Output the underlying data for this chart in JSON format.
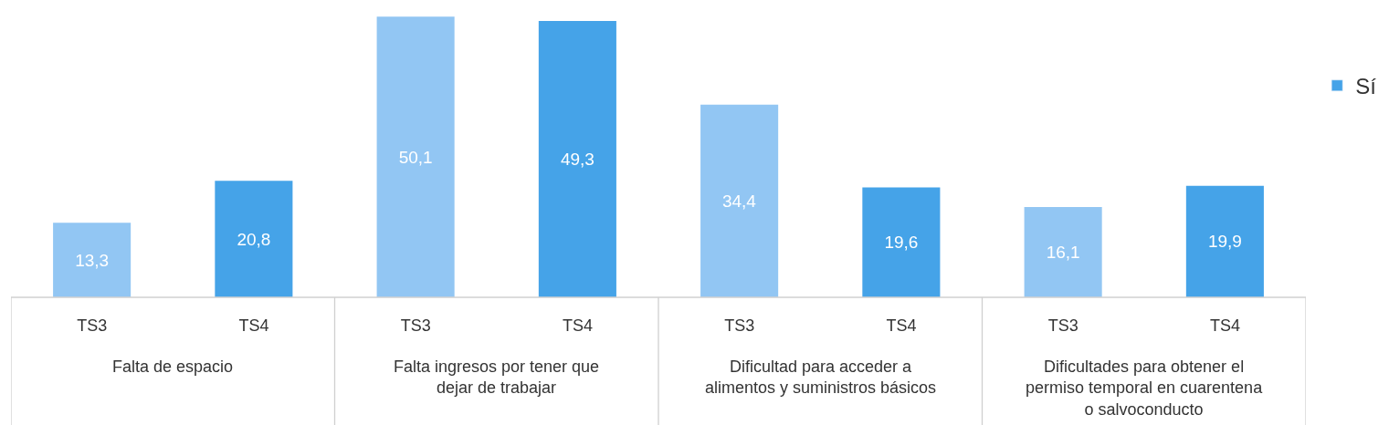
{
  "chart_data": {
    "type": "bar",
    "categories": [
      "TS3",
      "TS4",
      "TS3",
      "TS4",
      "TS3",
      "TS4",
      "TS3",
      "TS4"
    ],
    "series": [
      {
        "name": "Sí",
        "color": "#45a3e8",
        "colors": [
          "#92c6f3",
          "#45a3e8",
          "#92c6f3",
          "#45a3e8",
          "#92c6f3",
          "#45a3e8",
          "#92c6f3",
          "#45a3e8"
        ],
        "values": [
          13.3,
          20.8,
          50.1,
          49.3,
          34.4,
          19.6,
          16.1,
          19.9
        ],
        "value_labels": [
          "13,3",
          "20,8",
          "50,1",
          "49,3",
          "34,4",
          "19,6",
          "16,1",
          "19,9"
        ]
      }
    ],
    "annotations": [
      "Falta de espacio",
      "Falta ingresos por tener que dejar de trabajar",
      "Dificultad para acceder a alimentos y suministros básicos",
      "Dificultades para obtener el permiso temporal en cuarentena o salvoconducto"
    ],
    "legend": "top right"
  }
}
